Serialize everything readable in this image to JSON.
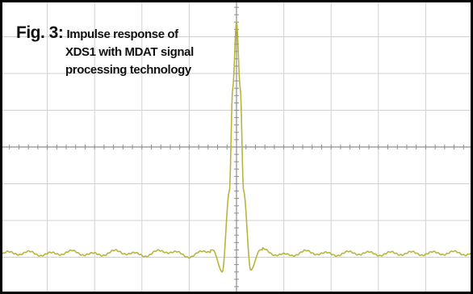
{
  "figure": {
    "label": "Fig. 3:",
    "caption_lines": [
      "Impulse response of",
      "XDS1 with MDAT signal",
      "processing  technology"
    ]
  },
  "colors": {
    "trace": "#b8b53c",
    "grid": "#d0d0d0",
    "axis": "#8e8e8e",
    "frame": "#000000",
    "background": "#ffffff"
  },
  "chart_data": {
    "type": "line",
    "title": "",
    "xlabel": "",
    "ylabel": "",
    "grid": true,
    "divisions": {
      "x": 10,
      "y": 8
    },
    "xlim": [
      -5,
      5
    ],
    "ylim": [
      -4,
      4
    ],
    "peak": {
      "x": 0.0,
      "y": 3.4
    },
    "baseline": -2.9,
    "x": [
      -5,
      -4.5,
      -4,
      -3.5,
      -3,
      -2.5,
      -2,
      -1.5,
      -1,
      -0.5,
      -0.3,
      -0.15,
      -0.08,
      0,
      0.08,
      0.15,
      0.3,
      0.5,
      1,
      1.5,
      2,
      2.5,
      3,
      3.5,
      4,
      4.5,
      5
    ],
    "y": [
      -2.9,
      -2.88,
      -2.92,
      -2.86,
      -2.93,
      -2.85,
      -2.94,
      -2.83,
      -2.96,
      -2.8,
      -3.4,
      -1.2,
      1.6,
      3.4,
      1.6,
      -1.2,
      -3.35,
      -2.8,
      -2.95,
      -2.86,
      -2.92,
      -2.88,
      -2.91,
      -2.89,
      -2.9,
      -2.88,
      -2.9
    ]
  }
}
